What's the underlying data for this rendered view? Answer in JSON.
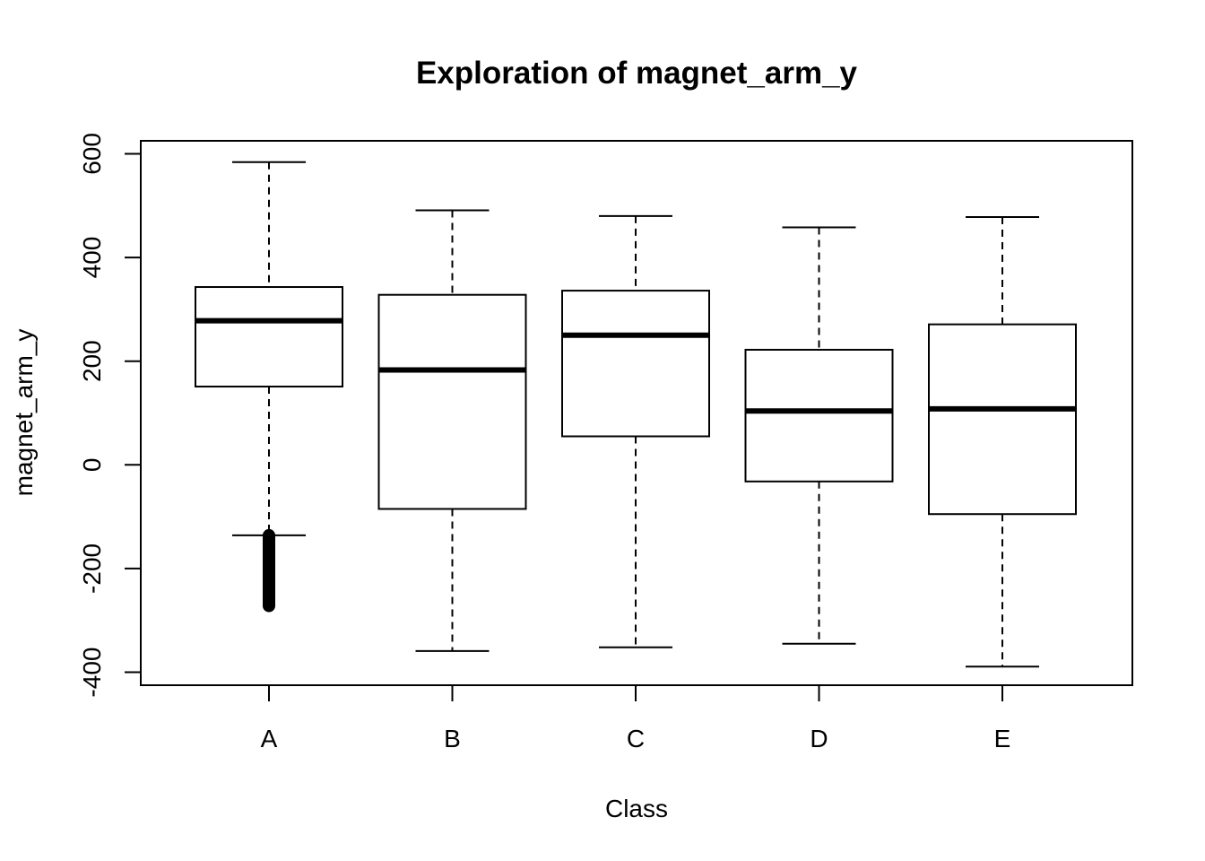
{
  "chart_data": {
    "type": "boxplot",
    "title": "Exploration of  magnet_arm_y",
    "xlabel": "Class",
    "ylabel": "magnet_arm_y",
    "categories": [
      "A",
      "B",
      "C",
      "D",
      "E"
    ],
    "ylim": [
      -425,
      625
    ],
    "yticks": [
      "-400",
      "-200",
      "0",
      "200",
      "400",
      "600"
    ],
    "ytick_values": [
      -400,
      -200,
      0,
      200,
      400,
      600
    ],
    "boxes": [
      {
        "category": "A",
        "whisker_low": -136,
        "q1": 151,
        "median": 278,
        "q3": 343,
        "whisker_high": 584,
        "outliers_range": [
          -272,
          -136
        ]
      },
      {
        "category": "B",
        "whisker_low": -359,
        "q1": -85,
        "median": 183,
        "q3": 328,
        "whisker_high": 491,
        "outliers_range": null
      },
      {
        "category": "C",
        "whisker_low": -352,
        "q1": 55,
        "median": 250,
        "q3": 336,
        "whisker_high": 480,
        "outliers_range": null
      },
      {
        "category": "D",
        "whisker_low": -345,
        "q1": -32,
        "median": 104,
        "q3": 222,
        "whisker_high": 458,
        "outliers_range": null
      },
      {
        "category": "E",
        "whisker_low": -389,
        "q1": -95,
        "median": 108,
        "q3": 271,
        "whisker_high": 478,
        "outliers_range": null
      }
    ],
    "grid": false,
    "legend": "none",
    "colors": {
      "box_fill": "#ffffff",
      "stroke": "#000000"
    }
  }
}
